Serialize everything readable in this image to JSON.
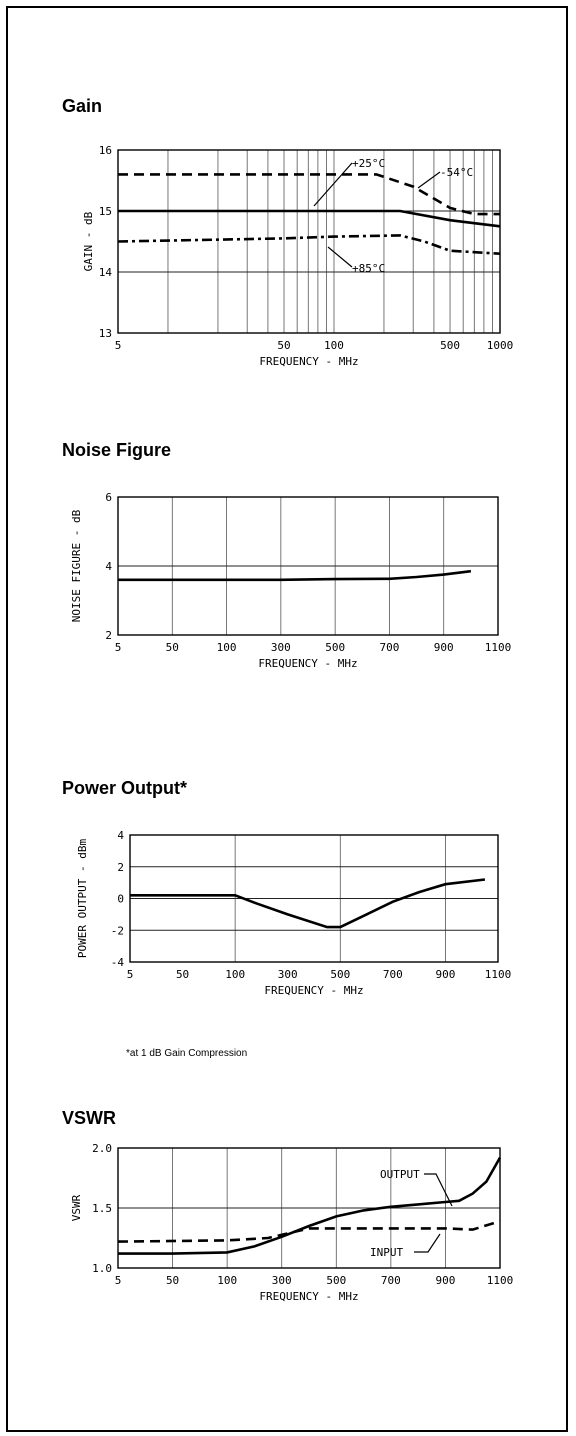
{
  "chart_data": [
    {
      "type": "line",
      "title": "Gain",
      "xlabel": "FREQUENCY - MHz",
      "ylabel": "GAIN - dB",
      "xscale": "log",
      "xlim": [
        5,
        1000
      ],
      "ylim": [
        13,
        16
      ],
      "xticks": [
        "5",
        "50",
        "100",
        "500",
        "1000"
      ],
      "yticks": [
        "13",
        "14",
        "15",
        "16"
      ],
      "grid": true,
      "series": [
        {
          "name": "-54°C",
          "style": "dashed",
          "points": [
            [
              5,
              15.6
            ],
            [
              100,
              15.6
            ],
            [
              180,
              15.6
            ],
            [
              300,
              15.4
            ],
            [
              500,
              15.05
            ],
            [
              700,
              14.95
            ],
            [
              1000,
              14.95
            ]
          ]
        },
        {
          "name": "+25°C",
          "style": "solid",
          "points": [
            [
              5,
              15.0
            ],
            [
              100,
              15.0
            ],
            [
              250,
              15.0
            ],
            [
              500,
              14.85
            ],
            [
              700,
              14.8
            ],
            [
              1000,
              14.75
            ]
          ]
        },
        {
          "name": "+85°C",
          "style": "dashdot",
          "points": [
            [
              5,
              14.5
            ],
            [
              50,
              14.55
            ],
            [
              100,
              14.58
            ],
            [
              250,
              14.6
            ],
            [
              350,
              14.5
            ],
            [
              500,
              14.35
            ],
            [
              1000,
              14.3
            ]
          ]
        }
      ],
      "annotations": [
        "+25°C",
        "-54°C",
        "+85°C"
      ]
    },
    {
      "type": "line",
      "title": "Noise Figure",
      "xlabel": "FREQUENCY - MHz",
      "ylabel": "NOISE FIGURE - dB",
      "xticks": [
        "5",
        "50",
        "100",
        "300",
        "500",
        "700",
        "900",
        "1100"
      ],
      "yticks": [
        "2",
        "4",
        "6"
      ],
      "ylim": [
        2,
        6
      ],
      "grid": true,
      "series": [
        {
          "name": "",
          "style": "solid",
          "points": [
            [
              5,
              3.6
            ],
            [
              100,
              3.6
            ],
            [
              300,
              3.6
            ],
            [
              500,
              3.62
            ],
            [
              700,
              3.63
            ],
            [
              800,
              3.68
            ],
            [
              900,
              3.75
            ],
            [
              1000,
              3.85
            ]
          ]
        }
      ]
    },
    {
      "type": "line",
      "title": "Power Output*",
      "xlabel": "FREQUENCY - MHz",
      "ylabel": "POWER OUTPUT - dBm",
      "xticks": [
        "5",
        "50",
        "100",
        "300",
        "500",
        "700",
        "900",
        "1100"
      ],
      "yticks": [
        "-4",
        "-2",
        "0",
        "2",
        "4"
      ],
      "ylim": [
        -4,
        4
      ],
      "grid": true,
      "series": [
        {
          "name": "",
          "style": "solid",
          "points": [
            [
              5,
              0.2
            ],
            [
              50,
              0.2
            ],
            [
              100,
              0.2
            ],
            [
              180,
              -0.3
            ],
            [
              300,
              -1.0
            ],
            [
              450,
              -1.8
            ],
            [
              500,
              -1.8
            ],
            [
              600,
              -1.0
            ],
            [
              700,
              -0.2
            ],
            [
              800,
              0.4
            ],
            [
              900,
              0.9
            ],
            [
              1050,
              1.2
            ]
          ]
        }
      ]
    },
    {
      "type": "line",
      "title": "VSWR",
      "xlabel": "FREQUENCY - MHz",
      "ylabel": "VSWR",
      "xticks": [
        "5",
        "50",
        "100",
        "300",
        "500",
        "700",
        "900",
        "1100"
      ],
      "yticks": [
        "1.0",
        "1.5",
        "2.0"
      ],
      "ylim": [
        1.0,
        2.0
      ],
      "grid": true,
      "series": [
        {
          "name": "OUTPUT",
          "style": "solid",
          "points": [
            [
              5,
              1.12
            ],
            [
              50,
              1.12
            ],
            [
              100,
              1.13
            ],
            [
              200,
              1.18
            ],
            [
              300,
              1.26
            ],
            [
              400,
              1.35
            ],
            [
              500,
              1.43
            ],
            [
              600,
              1.48
            ],
            [
              700,
              1.51
            ],
            [
              800,
              1.53
            ],
            [
              900,
              1.55
            ],
            [
              950,
              1.56
            ],
            [
              1000,
              1.62
            ],
            [
              1050,
              1.72
            ],
            [
              1100,
              1.92
            ]
          ]
        },
        {
          "name": "INPUT",
          "style": "dashed",
          "points": [
            [
              5,
              1.22
            ],
            [
              100,
              1.23
            ],
            [
              250,
              1.25
            ],
            [
              400,
              1.33
            ],
            [
              600,
              1.33
            ],
            [
              900,
              1.33
            ],
            [
              1000,
              1.32
            ],
            [
              1100,
              1.39
            ]
          ]
        }
      ],
      "annotations": [
        "OUTPUT",
        "INPUT"
      ]
    }
  ],
  "footnote": "*at 1 dB Gain Compression"
}
